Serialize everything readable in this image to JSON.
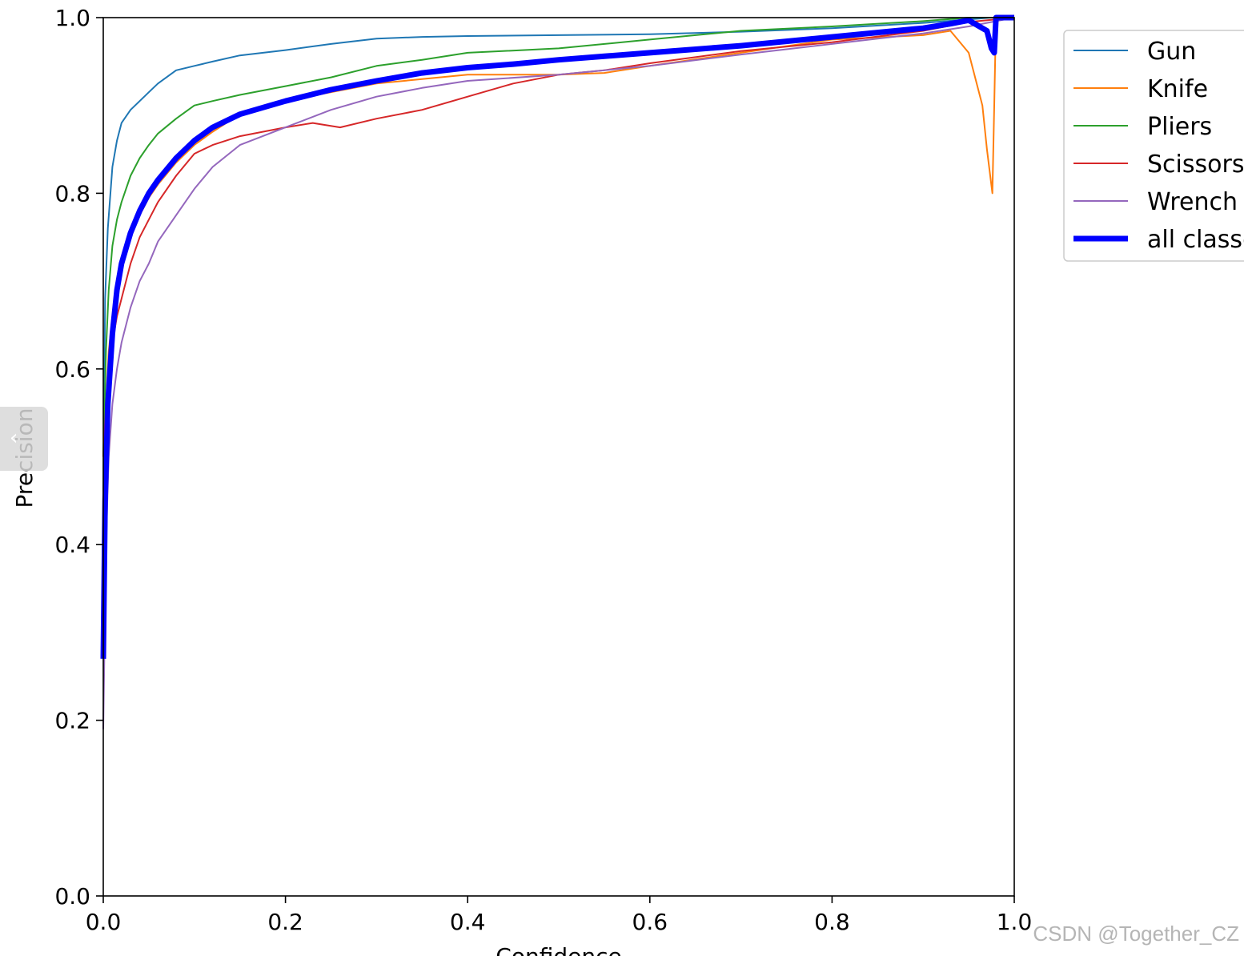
{
  "chart_data": {
    "type": "line",
    "title": "",
    "xlabel": "Confidence",
    "ylabel": "Precision",
    "xlim": [
      0,
      1
    ],
    "ylim": [
      0,
      1
    ],
    "xticks": [
      "0.0",
      "0.2",
      "0.4",
      "0.6",
      "0.8",
      "1.0"
    ],
    "yticks": [
      "0.0",
      "0.2",
      "0.4",
      "0.6",
      "0.8",
      "1.0"
    ],
    "grid": false,
    "legend_position": "outside-top-right",
    "series": [
      {
        "name": "Gun",
        "color": "#1f77b4",
        "x": [
          0.0,
          0.002,
          0.005,
          0.01,
          0.015,
          0.02,
          0.03,
          0.04,
          0.05,
          0.06,
          0.08,
          0.1,
          0.12,
          0.15,
          0.2,
          0.25,
          0.3,
          0.35,
          0.4,
          0.5,
          0.6,
          0.7,
          0.8,
          0.9,
          0.95,
          0.975,
          1.0
        ],
        "y": [
          0.46,
          0.68,
          0.76,
          0.83,
          0.86,
          0.88,
          0.895,
          0.905,
          0.915,
          0.925,
          0.94,
          0.945,
          0.95,
          0.957,
          0.963,
          0.97,
          0.976,
          0.978,
          0.979,
          0.98,
          0.981,
          0.984,
          0.988,
          0.994,
          0.998,
          1.0,
          1.0
        ]
      },
      {
        "name": "Knife",
        "color": "#ff7f0e",
        "x": [
          0.0,
          0.003,
          0.006,
          0.01,
          0.015,
          0.02,
          0.03,
          0.04,
          0.05,
          0.06,
          0.08,
          0.1,
          0.12,
          0.15,
          0.2,
          0.25,
          0.3,
          0.35,
          0.4,
          0.5,
          0.55,
          0.6,
          0.7,
          0.8,
          0.9,
          0.93,
          0.95,
          0.965,
          0.97,
          0.976,
          0.978,
          0.98,
          1.0
        ],
        "y": [
          0.45,
          0.56,
          0.62,
          0.66,
          0.69,
          0.72,
          0.755,
          0.775,
          0.795,
          0.81,
          0.835,
          0.855,
          0.87,
          0.89,
          0.905,
          0.915,
          0.925,
          0.93,
          0.935,
          0.935,
          0.937,
          0.945,
          0.96,
          0.975,
          0.98,
          0.985,
          0.96,
          0.9,
          0.85,
          0.8,
          0.9,
          1.0,
          1.0
        ]
      },
      {
        "name": "Pliers",
        "color": "#2ca02c",
        "x": [
          0.0,
          0.003,
          0.006,
          0.01,
          0.015,
          0.02,
          0.03,
          0.04,
          0.05,
          0.06,
          0.08,
          0.1,
          0.12,
          0.15,
          0.2,
          0.25,
          0.3,
          0.35,
          0.4,
          0.5,
          0.6,
          0.7,
          0.8,
          0.9,
          0.95,
          1.0
        ],
        "y": [
          0.5,
          0.62,
          0.69,
          0.74,
          0.77,
          0.79,
          0.82,
          0.84,
          0.855,
          0.868,
          0.885,
          0.9,
          0.905,
          0.912,
          0.922,
          0.932,
          0.945,
          0.952,
          0.96,
          0.965,
          0.975,
          0.985,
          0.99,
          0.996,
          1.0,
          1.0
        ]
      },
      {
        "name": "Scissors",
        "color": "#d62728",
        "x": [
          0.0,
          0.003,
          0.006,
          0.01,
          0.015,
          0.02,
          0.03,
          0.04,
          0.05,
          0.06,
          0.08,
          0.1,
          0.12,
          0.15,
          0.2,
          0.23,
          0.26,
          0.3,
          0.35,
          0.4,
          0.45,
          0.5,
          0.55,
          0.6,
          0.7,
          0.8,
          0.9,
          0.95,
          1.0
        ],
        "y": [
          0.5,
          0.56,
          0.6,
          0.63,
          0.66,
          0.68,
          0.72,
          0.75,
          0.77,
          0.79,
          0.82,
          0.845,
          0.855,
          0.865,
          0.875,
          0.88,
          0.875,
          0.885,
          0.895,
          0.91,
          0.925,
          0.935,
          0.94,
          0.948,
          0.962,
          0.972,
          0.985,
          0.995,
          1.0
        ]
      },
      {
        "name": "Wrench",
        "color": "#9467bd",
        "x": [
          0.0,
          0.003,
          0.006,
          0.01,
          0.015,
          0.02,
          0.03,
          0.04,
          0.05,
          0.06,
          0.08,
          0.1,
          0.12,
          0.15,
          0.2,
          0.25,
          0.3,
          0.35,
          0.4,
          0.5,
          0.6,
          0.7,
          0.8,
          0.9,
          0.95,
          1.0
        ],
        "y": [
          0.19,
          0.4,
          0.5,
          0.56,
          0.6,
          0.63,
          0.67,
          0.7,
          0.72,
          0.745,
          0.775,
          0.805,
          0.83,
          0.855,
          0.875,
          0.895,
          0.91,
          0.92,
          0.928,
          0.935,
          0.945,
          0.958,
          0.97,
          0.982,
          0.99,
          1.0
        ]
      },
      {
        "name": "all classes",
        "color": "#0000ff",
        "width": 7,
        "x": [
          0.0,
          0.002,
          0.005,
          0.01,
          0.015,
          0.02,
          0.03,
          0.04,
          0.05,
          0.06,
          0.08,
          0.1,
          0.12,
          0.15,
          0.2,
          0.25,
          0.3,
          0.35,
          0.4,
          0.45,
          0.5,
          0.55,
          0.6,
          0.7,
          0.8,
          0.85,
          0.9,
          0.93,
          0.95,
          0.97,
          0.975,
          0.978,
          0.98,
          1.0
        ],
        "y": [
          0.27,
          0.45,
          0.56,
          0.64,
          0.69,
          0.72,
          0.755,
          0.78,
          0.8,
          0.815,
          0.84,
          0.86,
          0.875,
          0.89,
          0.905,
          0.918,
          0.928,
          0.937,
          0.943,
          0.947,
          0.952,
          0.956,
          0.96,
          0.968,
          0.978,
          0.983,
          0.988,
          0.993,
          0.997,
          0.985,
          0.965,
          0.96,
          1.0,
          1.0
        ]
      }
    ]
  },
  "watermark": "CSDN @Together_CZ",
  "side_handle_glyph": "‹",
  "styles": {
    "axis_color": "#000000",
    "background": "#ffffff"
  }
}
